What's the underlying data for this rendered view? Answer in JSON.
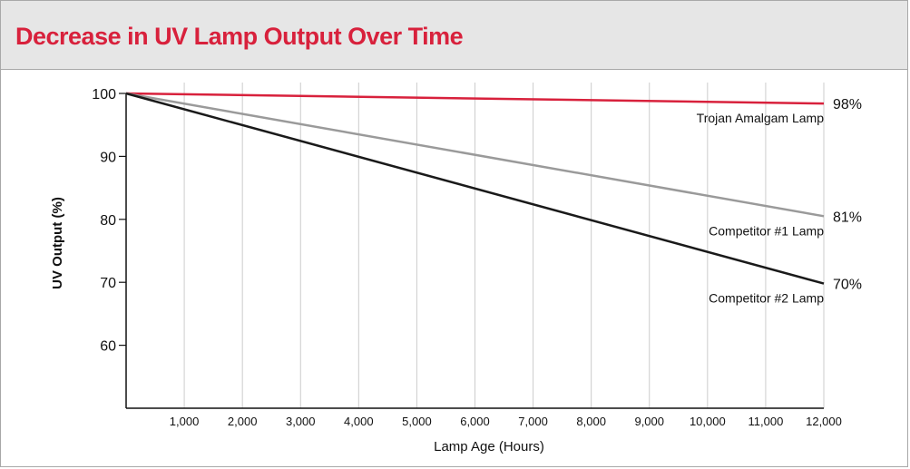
{
  "colors": {
    "title": "#d8213c",
    "header_bg": "#e6e6e6",
    "grid": "#cccccc",
    "axis": "#111111"
  },
  "chart_data": {
    "type": "line",
    "title": "Decrease in UV Lamp Output Over Time",
    "xlabel": "Lamp Age (Hours)",
    "ylabel": "UV Output (%)",
    "xlim": [
      0,
      12000
    ],
    "ylim": [
      50,
      100
    ],
    "x_ticks": [
      1000,
      2000,
      3000,
      4000,
      5000,
      6000,
      7000,
      8000,
      9000,
      10000,
      11000,
      12000
    ],
    "x_tick_labels": [
      "1,000",
      "2,000",
      "3,000",
      "4,000",
      "5,000",
      "6,000",
      "7,000",
      "8,000",
      "9,000",
      "10,000",
      "11,000",
      "12,000"
    ],
    "y_ticks": [
      60,
      70,
      80,
      90,
      100
    ],
    "y_tick_labels": [
      "60",
      "70",
      "80",
      "90",
      "100"
    ],
    "grid": "vertical",
    "series": [
      {
        "name": "Trojan Amalgam Lamp",
        "color": "#d8213c",
        "x": [
          0,
          12000
        ],
        "y": [
          100,
          98.4
        ],
        "end_label": "98%"
      },
      {
        "name": "Competitor #1 Lamp",
        "color": "#9a9a9a",
        "x": [
          0,
          12000
        ],
        "y": [
          100,
          80.5
        ],
        "end_label": "81%"
      },
      {
        "name": "Competitor #2 Lamp",
        "color": "#1a1a1a",
        "x": [
          0,
          12000
        ],
        "y": [
          100,
          69.8
        ],
        "end_label": "70%"
      }
    ]
  }
}
